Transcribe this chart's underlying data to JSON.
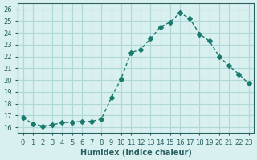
{
  "x": [
    0,
    1,
    2,
    3,
    4,
    5,
    6,
    7,
    8,
    9,
    10,
    11,
    12,
    13,
    14,
    15,
    16,
    17,
    18,
    19,
    20,
    21,
    22,
    23
  ],
  "y": [
    16.8,
    16.3,
    16.1,
    16.2,
    16.4,
    16.4,
    16.5,
    16.5,
    16.7,
    18.5,
    20.1,
    22.3,
    22.6,
    23.5,
    24.5,
    24.9,
    25.7,
    25.2,
    23.9,
    23.3,
    22.0,
    21.2,
    20.5,
    19.7
  ],
  "line_color": "#1a7a6e",
  "marker": "D",
  "marker_size": 3,
  "bg_color": "#d8f0ef",
  "grid_color": "#b0d8d5",
  "xlabel": "Humidex (Indice chaleur)",
  "ylabel": "",
  "xlim": [
    -0.5,
    23.5
  ],
  "ylim": [
    15.5,
    26.5
  ],
  "yticks": [
    16,
    17,
    18,
    19,
    20,
    21,
    22,
    23,
    24,
    25,
    26
  ],
  "xticks": [
    0,
    1,
    2,
    3,
    4,
    5,
    6,
    7,
    8,
    9,
    10,
    11,
    12,
    13,
    14,
    15,
    16,
    17,
    18,
    19,
    20,
    21,
    22,
    23
  ],
  "xlabel_fontsize": 7,
  "tick_fontsize": 6,
  "axis_color": "#2a6060"
}
